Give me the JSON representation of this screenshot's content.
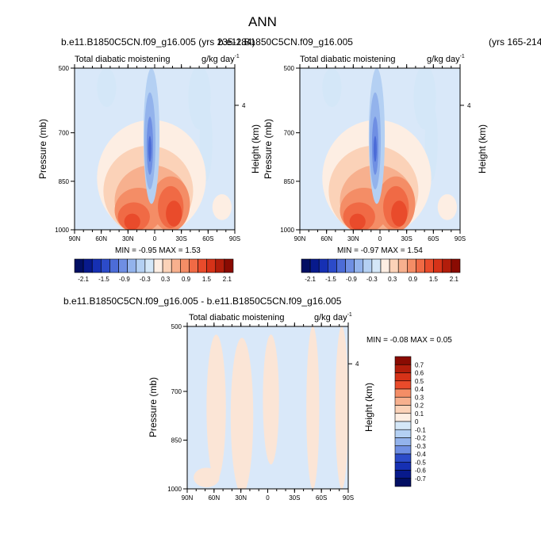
{
  "page": {
    "title": "ANN",
    "panel_a_case": "b.e11.B1850C5CN.f09_g16.005 (yrs 235-284)",
    "panel_b_case": "b.e11.B1850C5CN.f09_g16.005",
    "panel_b_years": "(yrs 165-214)",
    "panel_c_case": "b.e11.B1850C5CN.f09_g16.005 - b.e11.B1850C5CN.f09_g16.005"
  },
  "colors": {
    "positive_ramp": [
      "#fdeee3",
      "#fbd2b8",
      "#f7b08e",
      "#f48d66",
      "#f06a45",
      "#e94b2b",
      "#d63218",
      "#b21d0b",
      "#8a0b02"
    ],
    "negative_ramp": [
      "#d4e7f8",
      "#b4d0f3",
      "#93b3ec",
      "#6f8fe3",
      "#4c6cd7",
      "#2c4bc9",
      "#1630b3",
      "#081a8c",
      "#020f63"
    ],
    "background_field": "#d9e8f9",
    "diff_positive": "#fbe5d6",
    "diff_negative": "#d9e8f9"
  },
  "chart_data": [
    {
      "type": "heatmap",
      "subtype": "latitude-pressure contour",
      "panel_title_left": "Total diabatic moistening",
      "units_base": "g/kg day",
      "units_exp": "-1",
      "ylabel": "Pressure (mb)",
      "ylabel_right": "Height (km)",
      "xticks": [
        "90N",
        "60N",
        "30N",
        "0",
        "30S",
        "60S",
        "90S"
      ],
      "yticks": [
        "500",
        "700",
        "850",
        "1000"
      ],
      "yticks_right": [
        "4"
      ],
      "stats": "MIN = -0.95  MAX =   1.53",
      "colorbar_labels": [
        "-2.1",
        "-1.5",
        "-0.9",
        "-0.3",
        "0.3",
        "0.9",
        "1.5",
        "2.1"
      ],
      "y_range": [
        500,
        1000
      ],
      "x_range": [
        "90N",
        "90S"
      ],
      "min": -0.95,
      "max": 1.53
    },
    {
      "type": "heatmap",
      "subtype": "latitude-pressure contour",
      "panel_title_left": "Total diabatic moistening",
      "units_base": "g/kg day",
      "units_exp": "-1",
      "ylabel": "Pressure (mb)",
      "ylabel_right": "Height (km)",
      "xticks": [
        "90N",
        "60N",
        "30N",
        "0",
        "30S",
        "60S",
        "90S"
      ],
      "yticks": [
        "500",
        "700",
        "850",
        "1000"
      ],
      "yticks_right": [
        "4"
      ],
      "stats": "MIN = -0.97  MAX =   1.54",
      "colorbar_labels": [
        "-2.1",
        "-1.5",
        "-0.9",
        "-0.3",
        "0.3",
        "0.9",
        "1.5",
        "2.1"
      ],
      "y_range": [
        500,
        1000
      ],
      "x_range": [
        "90N",
        "90S"
      ],
      "min": -0.97,
      "max": 1.54
    },
    {
      "type": "heatmap",
      "subtype": "latitude-pressure contour difference",
      "panel_title_left": "Total diabatic moistening",
      "units_base": "g/kg day",
      "units_exp": "-1",
      "ylabel": "Pressure (mb)",
      "ylabel_right": "Height (km)",
      "xticks": [
        "90N",
        "60N",
        "30N",
        "0",
        "30S",
        "60S",
        "90S"
      ],
      "yticks": [
        "500",
        "700",
        "850",
        "1000"
      ],
      "yticks_right": [
        "4"
      ],
      "stats": "MIN = -0.08  MAX =   0.05",
      "colorbar_labels": [
        "0.7",
        "0.6",
        "0.5",
        "0.4",
        "0.3",
        "0.2",
        "0.1",
        "0",
        "-0.1",
        "-0.2",
        "-0.3",
        "-0.4",
        "-0.5",
        "-0.6",
        "-0.7"
      ],
      "y_range": [
        500,
        1000
      ],
      "x_range": [
        "90N",
        "90S"
      ],
      "min": -0.08,
      "max": 0.05
    }
  ]
}
